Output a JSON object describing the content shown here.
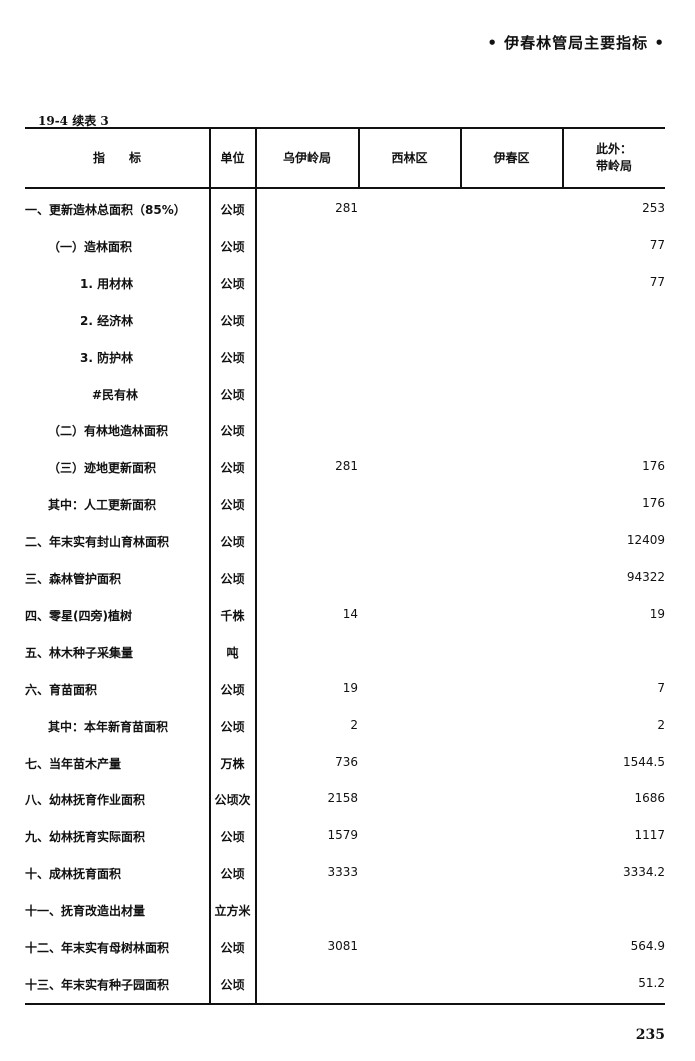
{
  "running_head": "• 伊春林管局主要指标 •",
  "caption": "19-4  续表 3",
  "columns": [
    "指　　标",
    "单位",
    "乌伊岭局",
    "西林区",
    "伊春区",
    "此外：\n带岭局"
  ],
  "rows": [
    {
      "label": "一、更新造林总面积（85%）",
      "level": 0,
      "unit": "公顷",
      "v1": "281",
      "v4": "253"
    },
    {
      "label": "（一）造林面积",
      "level": 1,
      "unit": "公顷",
      "v1": "",
      "v4": "77"
    },
    {
      "label": "1. 用材林",
      "level": 2,
      "unit": "公顷",
      "v1": "",
      "v4": "77"
    },
    {
      "label": "2. 经济林",
      "level": 2,
      "unit": "公顷",
      "v1": "",
      "v4": ""
    },
    {
      "label": "3. 防护林",
      "level": 2,
      "unit": "公顷",
      "v1": "",
      "v4": ""
    },
    {
      "label": "#民有林",
      "level": 3,
      "unit": "公顷",
      "v1": "",
      "v4": ""
    },
    {
      "label": "（二）有林地造林面积",
      "level": 1,
      "unit": "公顷",
      "v1": "",
      "v4": ""
    },
    {
      "label": "（三）迹地更新面积",
      "level": 1,
      "unit": "公顷",
      "v1": "281",
      "v4": "176"
    },
    {
      "label": "其中：人工更新面积",
      "level": 1,
      "unit": "公顷",
      "v1": "",
      "v4": "176"
    },
    {
      "label": "二、年末实有封山育林面积",
      "level": 0,
      "unit": "公顷",
      "v1": "",
      "v4": "12409"
    },
    {
      "label": "三、森林管护面积",
      "level": 0,
      "unit": "公顷",
      "v1": "",
      "v4": "94322"
    },
    {
      "label": "四、零星(四旁)植树",
      "level": 0,
      "unit": "千株",
      "v1": "14",
      "v4": "19"
    },
    {
      "label": "五、林木种子采集量",
      "level": 0,
      "unit": "吨",
      "v1": "",
      "v4": ""
    },
    {
      "label": "六、育苗面积",
      "level": 0,
      "unit": "公顷",
      "v1": "19",
      "v4": "7"
    },
    {
      "label": "其中：本年新育苗面积",
      "level": 1,
      "unit": "公顷",
      "v1": "2",
      "v4": "2"
    },
    {
      "label": "七、当年苗木产量",
      "level": 0,
      "unit": "万株",
      "v1": "736",
      "v4": "1544.5"
    },
    {
      "label": "八、幼林抚育作业面积",
      "level": 0,
      "unit": "公顷次",
      "v1": "2158",
      "v4": "1686"
    },
    {
      "label": "九、幼林抚育实际面积",
      "level": 0,
      "unit": "公顷",
      "v1": "1579",
      "v4": "1117"
    },
    {
      "label": "十、成林抚育面积",
      "level": 0,
      "unit": "公顷",
      "v1": "3333",
      "v4": "3334.2"
    },
    {
      "label": "十一、抚育改造出材量",
      "level": 0,
      "unit": "立方米",
      "v1": "",
      "v4": ""
    },
    {
      "label": "十二、年末实有母树林面积",
      "level": 0,
      "unit": "公顷",
      "v1": "3081",
      "v4": "564.9"
    },
    {
      "label": "十三、年末实有种子园面积",
      "level": 0,
      "unit": "公顷",
      "v1": "",
      "v4": "51.2"
    }
  ],
  "page_number": "235"
}
